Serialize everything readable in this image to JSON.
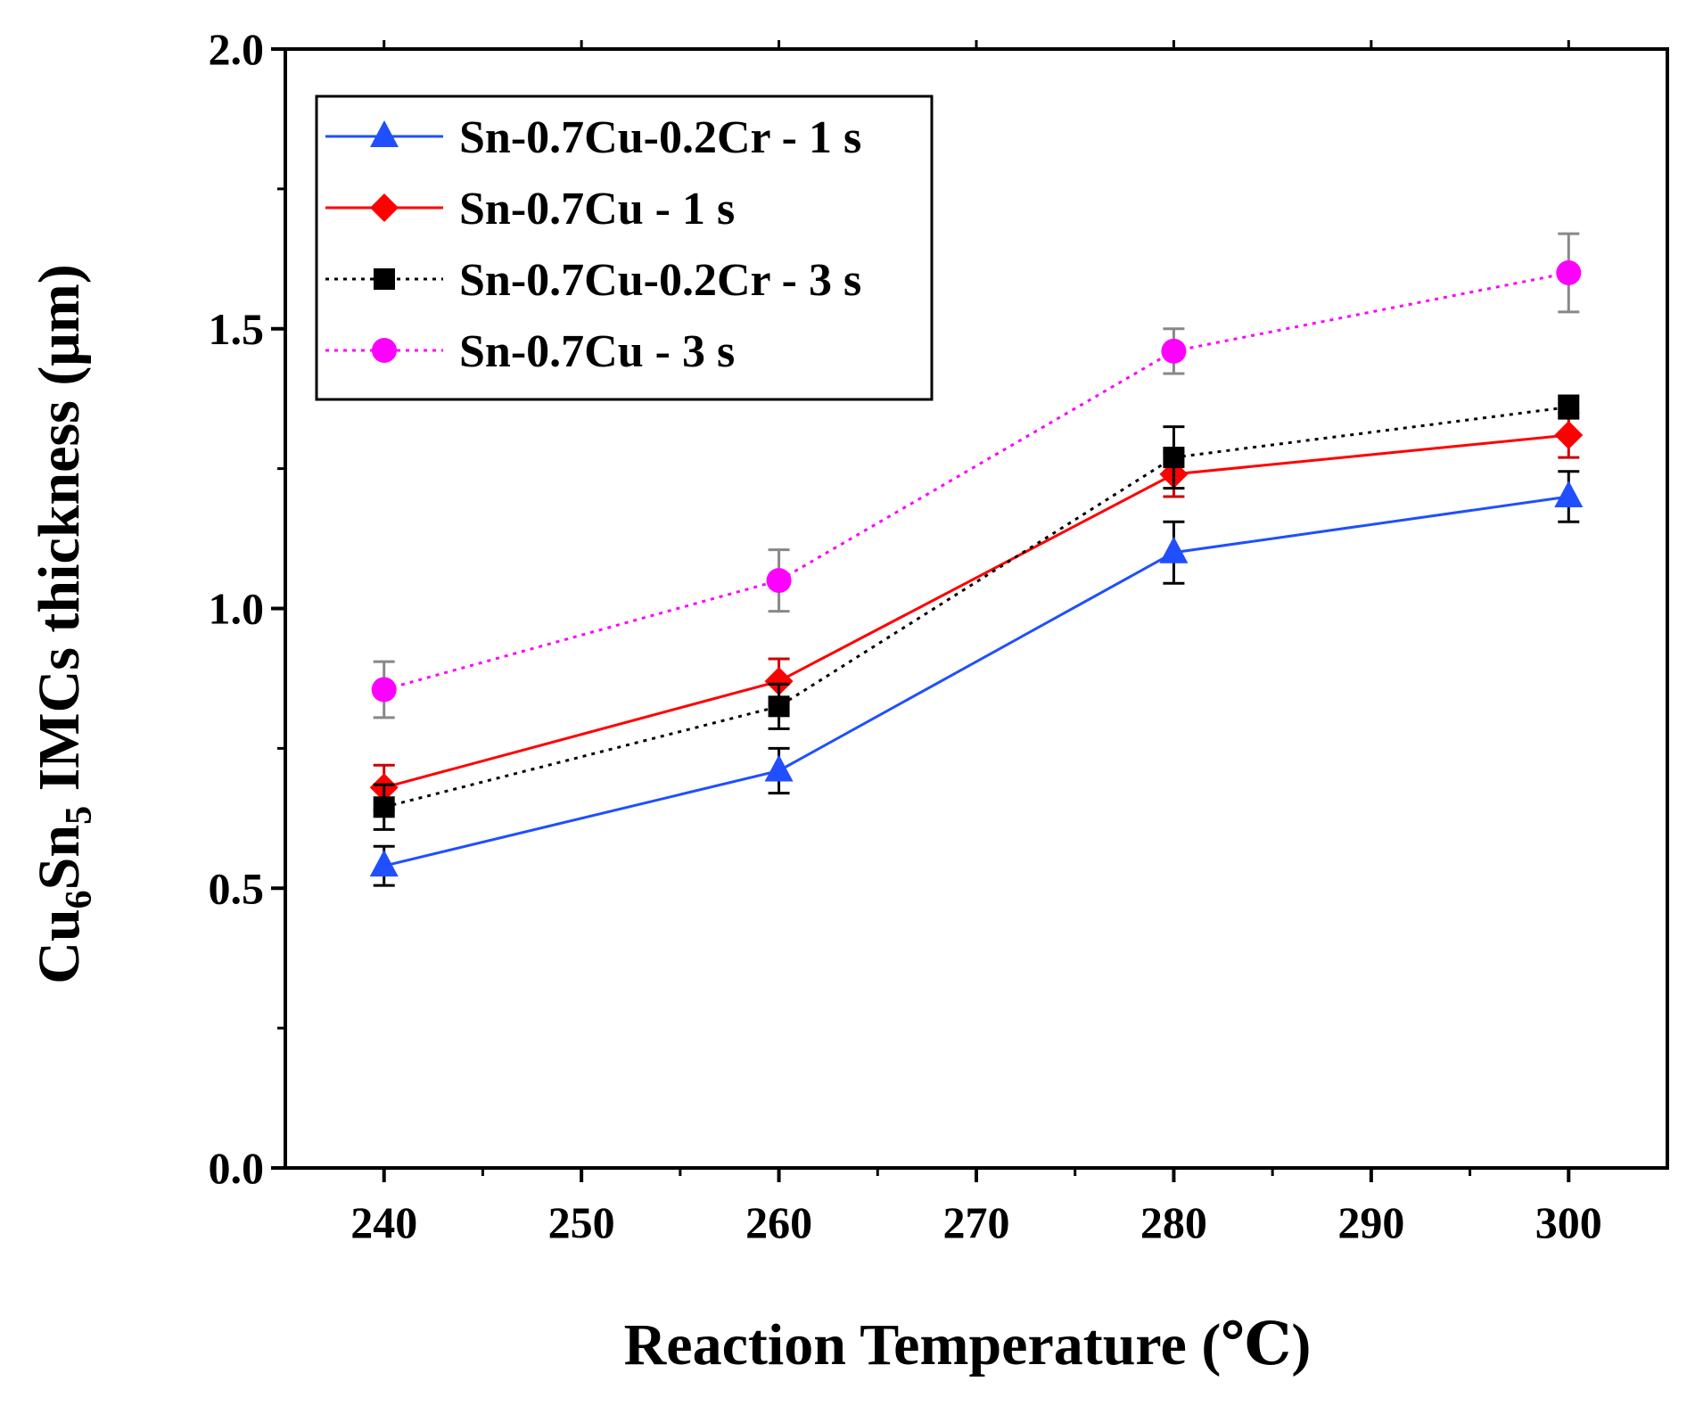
{
  "chart_data": {
    "type": "line",
    "title": "",
    "xlabel": "Reaction Temperature (℃)",
    "ylabel": {
      "prefix": "Cu",
      "sub1": "6",
      "middle": "Sn",
      "sub2": "5",
      "suffix": " IMCs thickness (μm)"
    },
    "xlim": [
      235,
      305
    ],
    "ylim": [
      0.0,
      2.0
    ],
    "x_major_ticks": [
      240,
      250,
      260,
      270,
      280,
      290,
      300
    ],
    "x_minor_ticks": [
      245,
      255,
      265,
      275,
      285,
      295
    ],
    "x_tick_labels": [
      "240",
      "250",
      "260",
      "270",
      "280",
      "290",
      "300"
    ],
    "y_major_ticks": [
      0.0,
      0.5,
      1.0,
      1.5,
      2.0
    ],
    "y_minor_ticks": [
      0.25,
      0.75,
      1.25,
      1.75
    ],
    "y_tick_labels": [
      "0.0",
      "0.5",
      "1.0",
      "1.5",
      "2.0"
    ],
    "legend_position": "top-left",
    "grid": false,
    "x": [
      240,
      260,
      280,
      300
    ],
    "series": [
      {
        "name": "Sn-0.7Cu-0.2Cr - 1 s",
        "color": "#1f4fff",
        "error_color": "#000000",
        "marker": "triangle",
        "dash": "solid",
        "values": [
          0.54,
          0.71,
          1.1,
          1.2
        ],
        "errors": [
          0.035,
          0.04,
          0.055,
          0.045
        ]
      },
      {
        "name": "Sn-0.7Cu - 1 s",
        "color": "#ff0000",
        "error_color": "#cc0000",
        "marker": "diamond",
        "dash": "solid",
        "values": [
          0.68,
          0.87,
          1.24,
          1.31
        ],
        "errors": [
          0.04,
          0.04,
          0.04,
          0.04
        ]
      },
      {
        "name": "Sn-0.7Cu-0.2Cr - 3 s",
        "color": "#000000",
        "error_color": "#000000",
        "marker": "square",
        "dash": "dotted",
        "values": [
          0.645,
          0.825,
          1.27,
          1.36
        ],
        "errors": [
          0.04,
          0.04,
          0.055,
          0.02
        ]
      },
      {
        "name": "Sn-0.7Cu - 3 s",
        "color": "#ff00ff",
        "error_color": "#888888",
        "marker": "circle",
        "dash": "dotted",
        "values": [
          0.855,
          1.05,
          1.46,
          1.6
        ],
        "errors": [
          0.05,
          0.055,
          0.04,
          0.07
        ]
      }
    ]
  }
}
